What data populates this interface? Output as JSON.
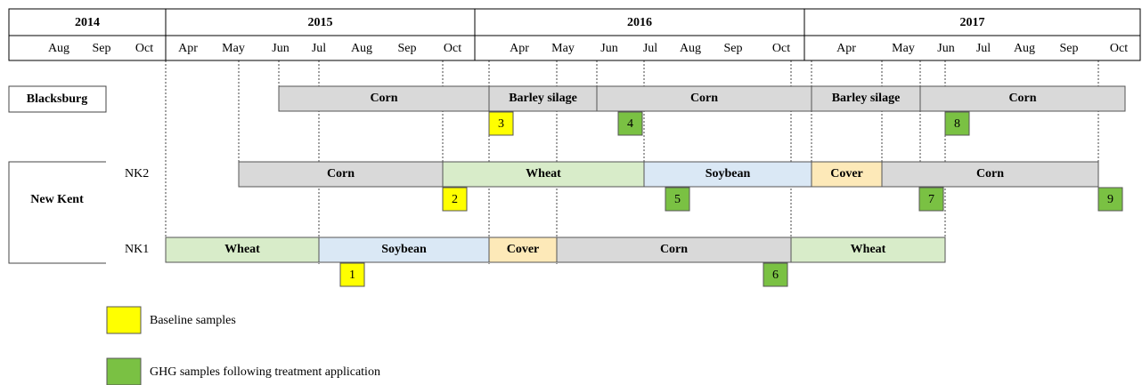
{
  "header": {
    "years": [
      {
        "label": "2014",
        "months": [
          "Aug",
          "Sep",
          "Oct"
        ]
      },
      {
        "label": "2015",
        "months": [
          "Apr",
          "May",
          "Jun",
          "Jul",
          "Aug",
          "Sep",
          "Oct"
        ]
      },
      {
        "label": "2016",
        "months": [
          "Apr",
          "May",
          "Jun",
          "Jul",
          "Aug",
          "Sep",
          "Oct"
        ]
      },
      {
        "label": "2017",
        "months": [
          "Apr",
          "May",
          "Jun",
          "Jul",
          "Aug",
          "Sep",
          "Oct"
        ]
      }
    ]
  },
  "sites": [
    "Blacksburg",
    "New Kent"
  ],
  "rows": [
    {
      "plot": null,
      "crops": [
        {
          "label": "Corn",
          "color": "#d9d9d9"
        },
        {
          "label": "Barley silage",
          "color": "#d9d9d9"
        },
        {
          "label": "Corn",
          "color": "#d9d9d9"
        },
        {
          "label": "Barley silage",
          "color": "#d9d9d9"
        },
        {
          "label": "Corn",
          "color": "#d9d9d9"
        }
      ],
      "samples": [
        {
          "label": "3",
          "color": "#ffff00"
        },
        {
          "label": "4",
          "color": "#7ac143"
        },
        {
          "label": "8",
          "color": "#7ac143"
        }
      ]
    },
    {
      "plot": "NK2",
      "crops": [
        {
          "label": "Corn",
          "color": "#d9d9d9"
        },
        {
          "label": "Wheat",
          "color": "#d8ecc9"
        },
        {
          "label": "Soybean",
          "color": "#dae8f5"
        },
        {
          "label": "Cover",
          "color": "#fde9b8"
        },
        {
          "label": "Corn",
          "color": "#d9d9d9"
        }
      ],
      "samples": [
        {
          "label": "2",
          "color": "#ffff00"
        },
        {
          "label": "5",
          "color": "#7ac143"
        },
        {
          "label": "7",
          "color": "#7ac143"
        },
        {
          "label": "9",
          "color": "#7ac143"
        }
      ]
    },
    {
      "plot": "NK1",
      "crops": [
        {
          "label": "Wheat",
          "color": "#d8ecc9"
        },
        {
          "label": "Soybean",
          "color": "#dae8f5"
        },
        {
          "label": "Cover",
          "color": "#fde9b8"
        },
        {
          "label": "Corn",
          "color": "#d9d9d9"
        },
        {
          "label": "Wheat",
          "color": "#d8ecc9"
        }
      ],
      "samples": [
        {
          "label": "1",
          "color": "#ffff00"
        },
        {
          "label": "6",
          "color": "#7ac143"
        }
      ]
    }
  ],
  "legend": [
    {
      "label": "Baseline samples",
      "color": "#ffff00"
    },
    {
      "label": "GHG samples following treatment application",
      "color": "#7ac143"
    }
  ]
}
